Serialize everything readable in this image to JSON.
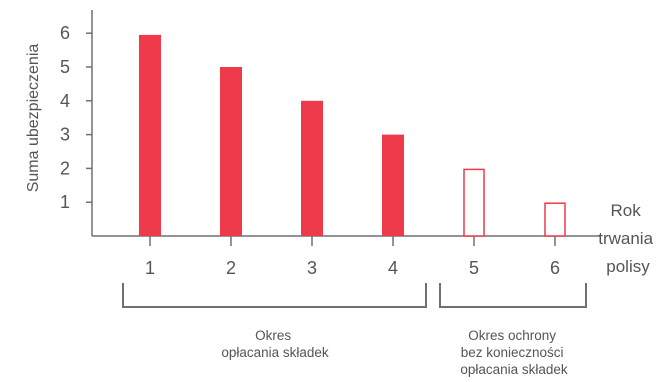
{
  "chart_data": {
    "type": "bar",
    "categories": [
      "1",
      "2",
      "3",
      "4",
      "5",
      "6"
    ],
    "values": [
      5.95,
      5.0,
      4.0,
      3.0,
      2.0,
      1.0
    ],
    "bar_styles": [
      "filled",
      "filled",
      "filled",
      "filled",
      "outline",
      "outline"
    ],
    "ylabel": "Suma ubezpieczenia",
    "xlabel_lines": [
      "Rok",
      "trwania",
      "polisy"
    ],
    "yticks": [
      "1",
      "2",
      "3",
      "4",
      "5",
      "6"
    ],
    "ylim": [
      0,
      6.8
    ],
    "grid": false,
    "legend": "none",
    "colors": {
      "bar": "#ee3a4b",
      "axis": "#707070",
      "text": "#555555"
    },
    "groups": [
      {
        "lines": [
          "Okres",
          "opłacania składek"
        ],
        "from": "1",
        "to": "4"
      },
      {
        "lines": [
          "Okres ochrony",
          "bez konieczności",
          "opłacania składek"
        ],
        "from": "5",
        "to": "6"
      }
    ]
  }
}
